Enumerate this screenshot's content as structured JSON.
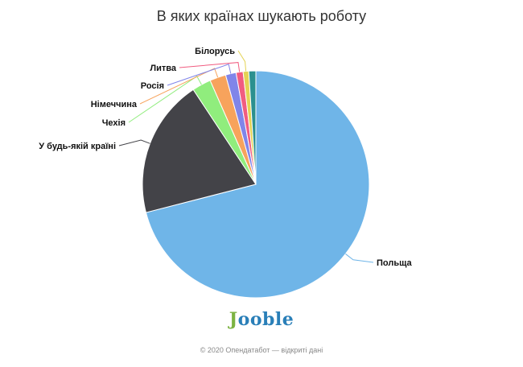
{
  "chart_data": {
    "type": "pie",
    "title": "В яких країнах шукають роботу",
    "slices": [
      {
        "label": "Польща",
        "value": 71.0,
        "color": "#6fb5e8"
      },
      {
        "label": "У будь-якій країні",
        "value": 19.7,
        "color": "#434348"
      },
      {
        "label": "Чехія",
        "value": 2.7,
        "color": "#90ed7d"
      },
      {
        "label": "Німеччина",
        "value": 2.3,
        "color": "#f7a35c"
      },
      {
        "label": "Росія",
        "value": 1.5,
        "color": "#8085e9"
      },
      {
        "label": "Литва",
        "value": 1.0,
        "color": "#f15c80"
      },
      {
        "label": "Білорусь",
        "value": 0.8,
        "color": "#e4d354"
      },
      {
        "label": "",
        "value": 1.0,
        "color": "#2b908f"
      }
    ]
  },
  "logo": {
    "first": "J",
    "rest": "ooble"
  },
  "footer": "© 2020 Опендатабот — відкриті дані"
}
